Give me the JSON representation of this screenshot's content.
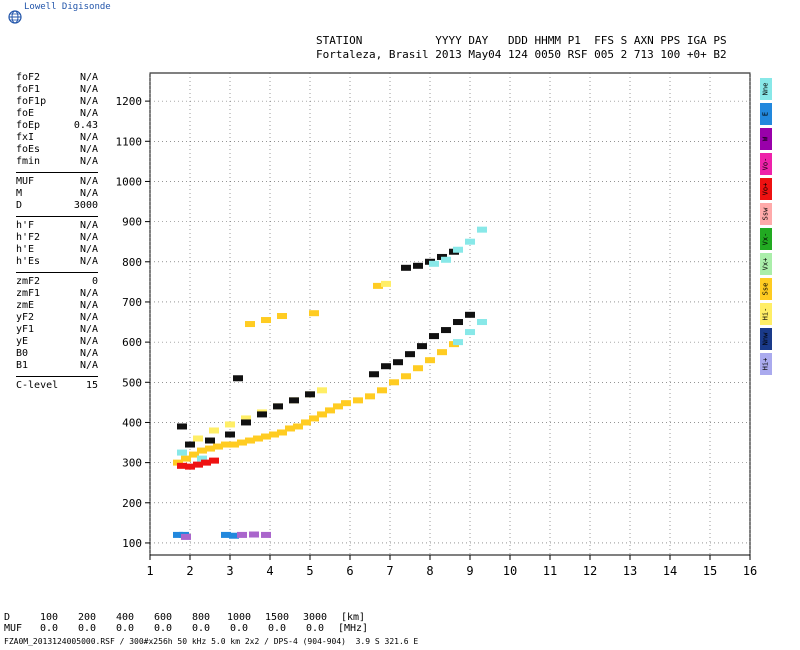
{
  "brand": {
    "name": "Lowell Digisonde",
    "logo_icon": "globe-icon"
  },
  "header": {
    "labels_line": "STATION           YYYY DAY   DDD HHMM P1  FFS S AXN PPS IGA PS",
    "values_line": "Fortaleza, Brasil 2013 May04 124 0050 RSF 005 2 713 100 +0+ B2"
  },
  "params": {
    "groups": [
      [
        {
          "name": "foF2",
          "value": "N/A"
        },
        {
          "name": "foF1",
          "value": "N/A"
        },
        {
          "name": "foF1p",
          "value": "N/A"
        },
        {
          "name": "foE",
          "value": "N/A"
        },
        {
          "name": "foEp",
          "value": "0.43"
        },
        {
          "name": "fxI",
          "value": "N/A"
        },
        {
          "name": "foEs",
          "value": "N/A"
        },
        {
          "name": "fmin",
          "value": "N/A"
        }
      ],
      [
        {
          "name": "MUF",
          "value": "N/A"
        },
        {
          "name": "M",
          "value": "N/A"
        },
        {
          "name": "D",
          "value": "3000"
        }
      ],
      [
        {
          "name": "h'F",
          "value": "N/A"
        },
        {
          "name": "h'F2",
          "value": "N/A"
        },
        {
          "name": "h'E",
          "value": "N/A"
        },
        {
          "name": "h'Es",
          "value": "N/A"
        }
      ],
      [
        {
          "name": "zmF2",
          "value": "0"
        },
        {
          "name": "zmF1",
          "value": "N/A"
        },
        {
          "name": "zmE",
          "value": "N/A"
        },
        {
          "name": "yF2",
          "value": "N/A"
        },
        {
          "name": "yF1",
          "value": "N/A"
        },
        {
          "name": "yE",
          "value": "N/A"
        },
        {
          "name": "B0",
          "value": "N/A"
        },
        {
          "name": "B1",
          "value": "N/A"
        }
      ],
      [
        {
          "name": "C-level",
          "value": "15"
        }
      ]
    ]
  },
  "legend": [
    {
      "label": "Nne",
      "color": "#88e8e8"
    },
    {
      "label": "E",
      "color": "#2288dd"
    },
    {
      "label": "W",
      "color": "#9900aa"
    },
    {
      "label": "Vo-",
      "color": "#ee22aa"
    },
    {
      "label": "Vo+",
      "color": "#ee1111"
    },
    {
      "label": "Ssw",
      "color": "#ffaaaa"
    },
    {
      "label": "Vx-",
      "color": "#22aa22"
    },
    {
      "label": "Vx+",
      "color": "#aaeeaa"
    },
    {
      "label": "Sse",
      "color": "#ffcc22"
    },
    {
      "label": "Hi-",
      "color": "#ffee66"
    },
    {
      "label": "Nnw",
      "color": "#1a3a8a"
    },
    {
      "label": "Hi+",
      "color": "#aaaaee"
    }
  ],
  "bottom": {
    "d_label": "D",
    "muf_label": "MUF",
    "d_values": [
      "100",
      "200",
      "400",
      "600",
      "800",
      "1000",
      "1500",
      "3000",
      "[km]"
    ],
    "muf_values": [
      "0.0",
      "0.0",
      "0.0",
      "0.0",
      "0.0",
      "0.0",
      "0.0",
      "0.0",
      "[MHz]"
    ],
    "footer": "FZA0M_2013124005000.RSF / 300#x256h 50 kHz 5.0 km 2x2 / DPS-4 (904-904)  3.9 S 321.6 E"
  },
  "chart_data": {
    "type": "scatter",
    "title": "",
    "xlabel": "",
    "ylabel": "",
    "xlim": [
      1,
      16
    ],
    "ylim": [
      70,
      1270
    ],
    "xticks": [
      1,
      2,
      3,
      4,
      5,
      6,
      7,
      8,
      9,
      10,
      11,
      12,
      13,
      14,
      15,
      16
    ],
    "yticks": [
      100,
      200,
      300,
      400,
      500,
      600,
      700,
      800,
      900,
      1000,
      1100,
      1200
    ],
    "grid": true,
    "series": [
      {
        "color": "#ffcc22",
        "points": [
          [
            1.7,
            300
          ],
          [
            1.9,
            310
          ],
          [
            2.1,
            320
          ],
          [
            2.3,
            330
          ],
          [
            2.5,
            335
          ],
          [
            2.7,
            340
          ],
          [
            2.9,
            345
          ],
          [
            3.1,
            345
          ],
          [
            3.3,
            350
          ],
          [
            3.5,
            355
          ],
          [
            3.7,
            360
          ],
          [
            3.9,
            365
          ],
          [
            4.1,
            370
          ],
          [
            4.3,
            375
          ],
          [
            4.5,
            385
          ],
          [
            4.7,
            390
          ],
          [
            4.9,
            400
          ],
          [
            5.1,
            410
          ],
          [
            5.3,
            420
          ],
          [
            5.5,
            430
          ],
          [
            5.7,
            440
          ],
          [
            5.9,
            448
          ],
          [
            6.2,
            455
          ],
          [
            6.5,
            465
          ],
          [
            6.8,
            480
          ],
          [
            7.1,
            500
          ],
          [
            7.4,
            515
          ],
          [
            7.7,
            535
          ],
          [
            8.0,
            555
          ],
          [
            8.3,
            575
          ],
          [
            8.6,
            595
          ],
          [
            3.5,
            645
          ],
          [
            3.9,
            655
          ],
          [
            4.3,
            665
          ],
          [
            5.1,
            672
          ],
          [
            6.7,
            740
          ]
        ]
      },
      {
        "color": "#ffee66",
        "points": [
          [
            2.2,
            360
          ],
          [
            2.6,
            380
          ],
          [
            3.0,
            395
          ],
          [
            3.4,
            410
          ],
          [
            3.8,
            425
          ],
          [
            4.2,
            440
          ],
          [
            4.6,
            455
          ],
          [
            5.0,
            470
          ],
          [
            5.3,
            480
          ],
          [
            6.9,
            745
          ]
        ]
      },
      {
        "color": "#111111",
        "points": [
          [
            2.0,
            345
          ],
          [
            2.5,
            355
          ],
          [
            3.0,
            370
          ],
          [
            3.4,
            400
          ],
          [
            3.8,
            420
          ],
          [
            4.2,
            440
          ],
          [
            4.6,
            455
          ],
          [
            5.0,
            470
          ],
          [
            6.6,
            520
          ],
          [
            6.9,
            540
          ],
          [
            7.2,
            550
          ],
          [
            7.5,
            570
          ],
          [
            7.8,
            590
          ],
          [
            8.1,
            615
          ],
          [
            8.4,
            630
          ],
          [
            8.7,
            650
          ],
          [
            9.0,
            668
          ],
          [
            7.4,
            785
          ],
          [
            7.7,
            790
          ],
          [
            8.0,
            800
          ],
          [
            8.3,
            812
          ],
          [
            8.6,
            825
          ],
          [
            1.8,
            390
          ],
          [
            3.2,
            510
          ]
        ]
      },
      {
        "color": "#88e8e8",
        "points": [
          [
            1.8,
            325
          ],
          [
            8.1,
            795
          ],
          [
            8.4,
            805
          ],
          [
            8.7,
            830
          ],
          [
            9.0,
            850
          ],
          [
            9.3,
            880
          ],
          [
            8.7,
            600
          ],
          [
            9.0,
            625
          ],
          [
            9.3,
            650
          ],
          [
            2.3,
            310
          ]
        ]
      },
      {
        "color": "#ee1111",
        "points": [
          [
            1.8,
            292
          ],
          [
            2.0,
            290
          ],
          [
            2.2,
            295
          ],
          [
            2.4,
            300
          ],
          [
            2.6,
            305
          ]
        ]
      },
      {
        "color": "#2288dd",
        "points": [
          [
            1.7,
            120
          ],
          [
            1.85,
            120
          ],
          [
            2.9,
            120
          ],
          [
            3.1,
            118
          ]
        ]
      },
      {
        "color": "#aa66cc",
        "points": [
          [
            3.3,
            120
          ],
          [
            3.6,
            121
          ],
          [
            3.9,
            120
          ],
          [
            1.9,
            115
          ]
        ]
      }
    ]
  }
}
